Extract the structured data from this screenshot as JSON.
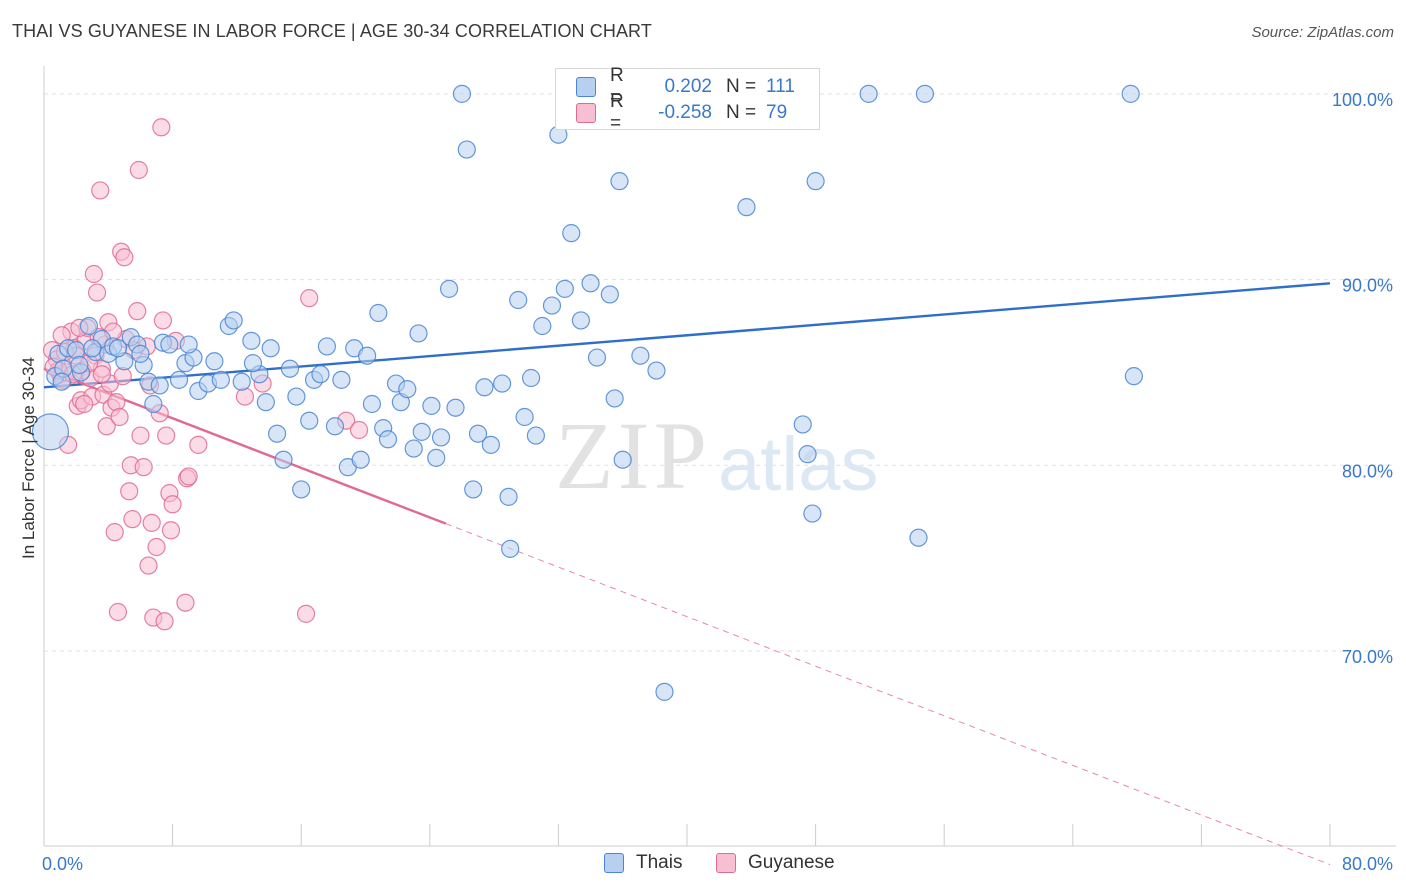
{
  "title": "THAI VS GUYANESE IN LABOR FORCE | AGE 30-34 CORRELATION CHART",
  "source": "Source: ZipAtlas.com",
  "watermark": {
    "zip": "ZIP",
    "atlas": "atlas"
  },
  "legend": {
    "series": [
      {
        "name": "Thais",
        "r_label": "R =",
        "r_value": "0.202",
        "n_label": "N =",
        "n_value": "111",
        "color": "#4a86d4",
        "fill": "#b7d0f0"
      },
      {
        "name": "Guyanese",
        "r_label": "R =",
        "r_value": "-0.258",
        "n_label": "N =",
        "n_value": "79",
        "color": "#e06a94",
        "fill": "#f7c0d2"
      }
    ]
  },
  "colors": {
    "accent": "#3a78c9",
    "blue_line": "#2f6fc9",
    "pink_line": "#e06a94",
    "grid": "#e0e0e0",
    "axis": "#cccccc"
  },
  "chart_data": {
    "type": "scatter",
    "title": "THAI VS GUYANESE IN LABOR FORCE | AGE 30-34 CORRELATION CHART",
    "xlabel": "",
    "ylabel": "In Labor Force | Age 30-34",
    "xlim": [
      0,
      80
    ],
    "ylim": [
      59.5,
      101.5
    ],
    "x_tick_labels": [
      {
        "value": 0,
        "label": "0.0%"
      },
      {
        "value": 80,
        "label": "80.0%"
      }
    ],
    "y_tick_labels": [
      {
        "value": 100,
        "label": "100.0%"
      },
      {
        "value": 90,
        "label": "90.0%"
      },
      {
        "value": 80,
        "label": "80.0%"
      },
      {
        "value": 70,
        "label": "70.0%"
      }
    ],
    "x_minor_ticks": [
      8,
      16,
      24,
      32,
      40,
      48,
      56,
      64,
      72
    ],
    "series": [
      {
        "name": "Thais",
        "trend": {
          "x0": 0,
          "y0": 84.2,
          "x1": 80,
          "y1": 89.8,
          "dashed_from": null
        },
        "points": [
          [
            0.4,
            81.8
          ],
          [
            0.7,
            84.8
          ],
          [
            0.9,
            86
          ],
          [
            1.2,
            85.2
          ],
          [
            1.5,
            86.3
          ],
          [
            2,
            86.2
          ],
          [
            2.3,
            85
          ],
          [
            2.8,
            87.5
          ],
          [
            3.2,
            86.1
          ],
          [
            3.6,
            86.8
          ],
          [
            4,
            86
          ],
          [
            4.3,
            86.4
          ],
          [
            5,
            85.6
          ],
          [
            5.4,
            86.9
          ],
          [
            5.8,
            86.5
          ],
          [
            6.2,
            85.4
          ],
          [
            6.5,
            84.5
          ],
          [
            6.8,
            83.3
          ],
          [
            7.4,
            86.6
          ],
          [
            7.8,
            86.5
          ],
          [
            7.2,
            84.3
          ],
          [
            8.4,
            84.6
          ],
          [
            8.8,
            85.5
          ],
          [
            9.3,
            85.8
          ],
          [
            9.6,
            84
          ],
          [
            10.2,
            84.4
          ],
          [
            10.6,
            85.6
          ],
          [
            11.5,
            87.5
          ],
          [
            11.8,
            87.8
          ],
          [
            12.3,
            84.5
          ],
          [
            12.9,
            86.7
          ],
          [
            13.4,
            84.9
          ],
          [
            13.8,
            83.4
          ],
          [
            14.1,
            86.3
          ],
          [
            14.5,
            81.7
          ],
          [
            14.9,
            80.3
          ],
          [
            15.3,
            85.2
          ],
          [
            15.7,
            83.7
          ],
          [
            16,
            78.7
          ],
          [
            16.5,
            82.4
          ],
          [
            16.8,
            84.6
          ],
          [
            17.2,
            84.9
          ],
          [
            17.6,
            86.4
          ],
          [
            18.1,
            82.1
          ],
          [
            18.5,
            84.6
          ],
          [
            18.9,
            79.9
          ],
          [
            19.3,
            86.3
          ],
          [
            19.7,
            80.3
          ],
          [
            20.1,
            85.9
          ],
          [
            20.4,
            83.3
          ],
          [
            20.8,
            88.2
          ],
          [
            21.1,
            82
          ],
          [
            21.4,
            81.4
          ],
          [
            21.9,
            84.4
          ],
          [
            22.2,
            83.4
          ],
          [
            22.6,
            84.1
          ],
          [
            23,
            80.9
          ],
          [
            23.5,
            81.8
          ],
          [
            23.3,
            87.1
          ],
          [
            24.1,
            83.2
          ],
          [
            24.4,
            80.4
          ],
          [
            24.7,
            81.5
          ],
          [
            25.2,
            89.5
          ],
          [
            25.6,
            83.1
          ],
          [
            26,
            100
          ],
          [
            26.3,
            97
          ],
          [
            26.7,
            78.7
          ],
          [
            27,
            81.7
          ],
          [
            27.4,
            84.2
          ],
          [
            27.8,
            81.1
          ],
          [
            28.5,
            84.4
          ],
          [
            28.9,
            78.3
          ],
          [
            29,
            75.5
          ],
          [
            29.5,
            88.9
          ],
          [
            29.9,
            82.6
          ],
          [
            30.3,
            84.7
          ],
          [
            30.6,
            81.6
          ],
          [
            31,
            87.5
          ],
          [
            31.6,
            88.6
          ],
          [
            32,
            97.8
          ],
          [
            32.4,
            89.5
          ],
          [
            32.8,
            92.5
          ],
          [
            33.4,
            87.8
          ],
          [
            34,
            89.8
          ],
          [
            34.4,
            85.8
          ],
          [
            35.2,
            89.2
          ],
          [
            35.5,
            83.6
          ],
          [
            36,
            80.3
          ],
          [
            35.8,
            95.3
          ],
          [
            37.1,
            85.9
          ],
          [
            38.1,
            85.1
          ],
          [
            38.6,
            67.8
          ],
          [
            40,
            100
          ],
          [
            43.7,
            93.9
          ],
          [
            47.2,
            82.2
          ],
          [
            47.5,
            80.6
          ],
          [
            47.8,
            77.4
          ],
          [
            48,
            95.3
          ],
          [
            51.3,
            100
          ],
          [
            54.4,
            76.1
          ],
          [
            54.8,
            100
          ],
          [
            67.6,
            100
          ],
          [
            67.8,
            84.8
          ],
          [
            1.1,
            84.5
          ],
          [
            3,
            86.3
          ],
          [
            2.2,
            85.4
          ],
          [
            4.6,
            86.3
          ],
          [
            6,
            86
          ],
          [
            9,
            86.5
          ],
          [
            11,
            84.6
          ],
          [
            13,
            85.5
          ]
        ]
      },
      {
        "name": "Guyanese",
        "trend": {
          "x0": 0,
          "y0": 85.2,
          "x1": 80,
          "y1": 58.5,
          "dashed_from": 25
        },
        "points": [
          [
            0.5,
            86.2
          ],
          [
            0.8,
            85.7
          ],
          [
            1,
            84.9
          ],
          [
            1.2,
            84.6
          ],
          [
            1.4,
            85
          ],
          [
            1.5,
            81.1
          ],
          [
            1.7,
            87.2
          ],
          [
            1.9,
            86.3
          ],
          [
            2,
            85.9
          ],
          [
            2.1,
            83.2
          ],
          [
            2.3,
            83.5
          ],
          [
            2.4,
            85.1
          ],
          [
            2.6,
            86.7
          ],
          [
            2.7,
            87.4
          ],
          [
            2.9,
            84.7
          ],
          [
            3,
            83.7
          ],
          [
            3.1,
            90.3
          ],
          [
            3.2,
            85.9
          ],
          [
            3.3,
            89.3
          ],
          [
            3.5,
            94.8
          ],
          [
            3.6,
            85.2
          ],
          [
            3.7,
            83.8
          ],
          [
            3.8,
            86.5
          ],
          [
            3.9,
            82.1
          ],
          [
            4,
            87.7
          ],
          [
            4.1,
            84.4
          ],
          [
            4.2,
            83.1
          ],
          [
            4.4,
            76.4
          ],
          [
            4.5,
            83.4
          ],
          [
            4.6,
            72.1
          ],
          [
            4.7,
            82.6
          ],
          [
            4.8,
            91.5
          ],
          [
            4.9,
            84.8
          ],
          [
            5,
            91.2
          ],
          [
            5.1,
            86.8
          ],
          [
            5.3,
            78.6
          ],
          [
            5.4,
            80
          ],
          [
            5.5,
            77.1
          ],
          [
            5.6,
            86.2
          ],
          [
            5.8,
            88.3
          ],
          [
            5.9,
            95.9
          ],
          [
            6,
            81.6
          ],
          [
            6.2,
            79.9
          ],
          [
            6.4,
            86.4
          ],
          [
            6.5,
            74.6
          ],
          [
            6.6,
            84.3
          ],
          [
            6.7,
            76.9
          ],
          [
            6.8,
            71.8
          ],
          [
            7,
            75.6
          ],
          [
            7.2,
            82.8
          ],
          [
            7.3,
            98.2
          ],
          [
            7.4,
            87.8
          ],
          [
            7.5,
            71.6
          ],
          [
            7.6,
            81.6
          ],
          [
            7.8,
            78.5
          ],
          [
            7.9,
            76.5
          ],
          [
            8,
            77.9
          ],
          [
            8.2,
            86.7
          ],
          [
            8.8,
            72.6
          ],
          [
            8.9,
            79.3
          ],
          [
            9,
            79.4
          ],
          [
            9.6,
            81.1
          ],
          [
            12.5,
            83.7
          ],
          [
            13.6,
            84.4
          ],
          [
            16.5,
            89
          ],
          [
            16.3,
            72
          ],
          [
            18.8,
            82.4
          ],
          [
            19.6,
            81.9
          ],
          [
            0.9,
            85.1
          ],
          [
            1.3,
            86.1
          ],
          [
            2.2,
            87.4
          ],
          [
            2.8,
            85.5
          ],
          [
            3.4,
            86.9
          ],
          [
            1.8,
            84.9
          ],
          [
            0.6,
            85.3
          ],
          [
            1.1,
            87
          ],
          [
            2.5,
            83.3
          ],
          [
            3.6,
            84.9
          ],
          [
            4.3,
            87.2
          ]
        ]
      }
    ]
  }
}
